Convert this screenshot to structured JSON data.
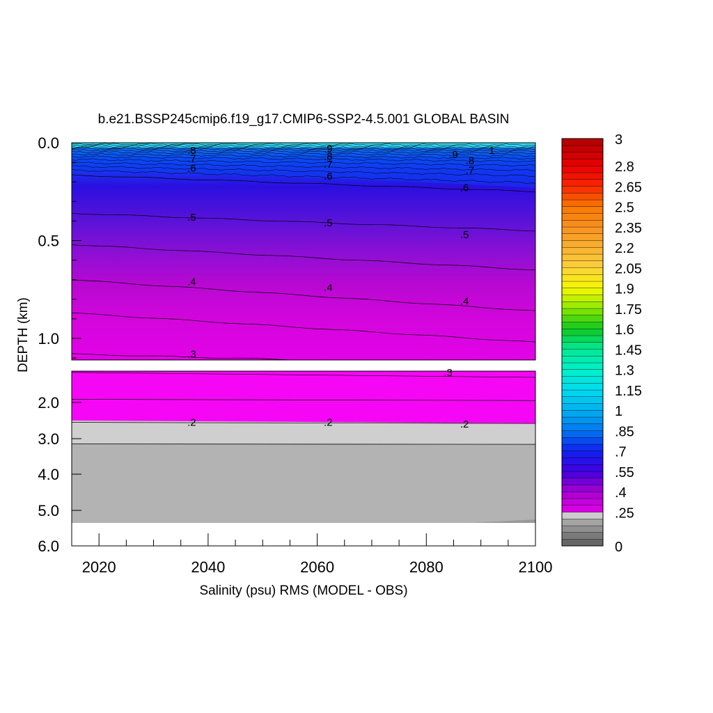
{
  "chart_data": {
    "type": "heatmap",
    "title": "b.e21.BSSP245cmip6.f19_g17.CMIP6-SSP2-4.5.001 GLOBAL BASIN",
    "xlabel": "Salinity (psu) RMS (MODEL - OBS)",
    "ylabel": "DEPTH (km)",
    "xlim": [
      2015,
      2100
    ],
    "x_ticks": [
      "2020",
      "2040",
      "2060",
      "2080",
      "2100"
    ],
    "panels": [
      {
        "name": "upper",
        "ylim": [
          0.0,
          1.1
        ],
        "y_ticks": [
          "0.0",
          "0.5",
          "1.0"
        ]
      },
      {
        "name": "lower",
        "ylim": [
          1.5,
          6.0
        ],
        "y_ticks": [
          "2.0",
          "3.0",
          "4.0",
          "5.0",
          "6.0"
        ]
      }
    ],
    "colorbar": {
      "ticks": [
        "0",
        ".25",
        ".4",
        ".55",
        ".7",
        ".85",
        "1",
        "1.15",
        "1.3",
        "1.45",
        "1.6",
        "1.75",
        "1.9",
        "2.05",
        "2.2",
        "2.35",
        "2.5",
        "2.65",
        "2.8",
        "3"
      ],
      "min": 0,
      "max": 3,
      "step": 0.05
    },
    "contour_levels": [
      {
        "x": 2092,
        "depth": 0.04,
        "label": "1"
      },
      {
        "x": 2062,
        "depth": 0.03,
        "label": ".9"
      },
      {
        "x": 2085,
        "depth": 0.06,
        "label": ".9"
      },
      {
        "x": 2037,
        "depth": 0.04,
        "label": ".8"
      },
      {
        "x": 2062,
        "depth": 0.07,
        "label": ".8"
      },
      {
        "x": 2088,
        "depth": 0.09,
        "label": ".8"
      },
      {
        "x": 2037,
        "depth": 0.08,
        "label": ".7"
      },
      {
        "x": 2062,
        "depth": 0.11,
        "label": ".7"
      },
      {
        "x": 2088,
        "depth": 0.14,
        "label": ".7"
      },
      {
        "x": 2037,
        "depth": 0.13,
        "label": ".6"
      },
      {
        "x": 2062,
        "depth": 0.17,
        "label": ".6"
      },
      {
        "x": 2087,
        "depth": 0.23,
        "label": ".6"
      },
      {
        "x": 2037,
        "depth": 0.38,
        "label": ".5"
      },
      {
        "x": 2062,
        "depth": 0.41,
        "label": ".5"
      },
      {
        "x": 2087,
        "depth": 0.47,
        "label": ".5"
      },
      {
        "x": 2037,
        "depth": 0.71,
        "label": ".4"
      },
      {
        "x": 2062,
        "depth": 0.74,
        "label": ".4"
      },
      {
        "x": 2087,
        "depth": 0.81,
        "label": ".4"
      },
      {
        "x": 2037,
        "depth": 1.08,
        "label": ".3"
      },
      {
        "x": 2084,
        "depth": 1.52,
        "label": ".3"
      },
      {
        "x": 2037,
        "depth": 2.55,
        "label": ".2"
      },
      {
        "x": 2062,
        "depth": 2.55,
        "label": ".2"
      },
      {
        "x": 2087,
        "depth": 2.6,
        "label": ".2"
      }
    ]
  }
}
